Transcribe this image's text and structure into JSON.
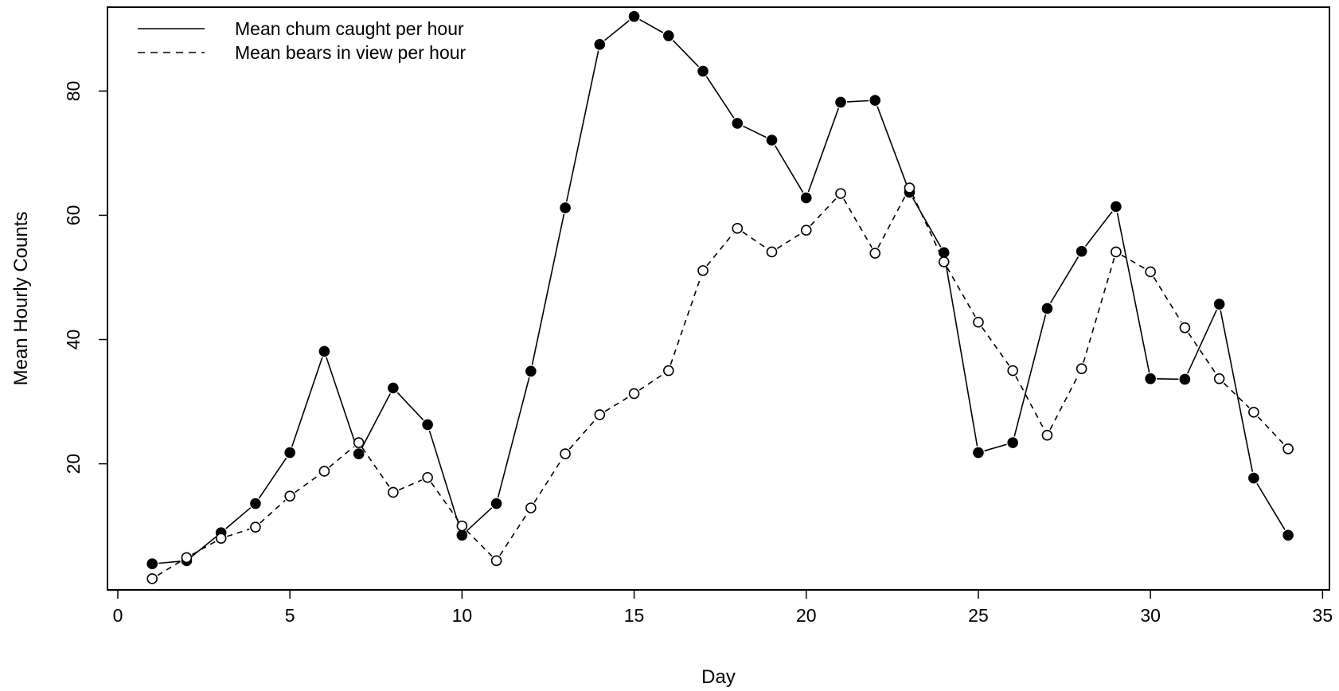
{
  "chart_data": {
    "type": "line",
    "title": "",
    "xlabel": "Day",
    "ylabel": "Mean Hourly Counts",
    "xlim": [
      -0.3,
      35.2
    ],
    "ylim": [
      -0.3,
      93.5
    ],
    "xticks": [
      0,
      5,
      10,
      15,
      20,
      25,
      30,
      35
    ],
    "yticks": [
      20,
      40,
      60,
      80
    ],
    "grid": false,
    "legend_position": "top-left",
    "x": [
      1,
      2,
      3,
      4,
      5,
      6,
      7,
      8,
      9,
      10,
      11,
      12,
      13,
      14,
      15,
      16,
      17,
      18,
      19,
      20,
      21,
      22,
      23,
      24,
      25,
      26,
      27,
      28,
      29,
      30,
      31,
      32,
      33,
      34
    ],
    "series": [
      {
        "name": "Mean chum caught per hour",
        "line_style": "solid",
        "marker": "filled-circle",
        "color": "#000000",
        "values": [
          3.9,
          4.4,
          8.9,
          13.6,
          21.8,
          38.1,
          21.6,
          32.2,
          26.3,
          8.5,
          13.6,
          34.9,
          61.2,
          87.5,
          92.0,
          88.9,
          83.2,
          74.8,
          72.1,
          62.8,
          78.2,
          78.5,
          63.7,
          54.0,
          21.8,
          23.4,
          45.0,
          54.2,
          61.4,
          33.7,
          33.6,
          45.7,
          17.7,
          8.5
        ]
      },
      {
        "name": "Mean bears in view per hour",
        "line_style": "dashed",
        "marker": "open-circle",
        "color": "#000000",
        "values": [
          1.5,
          4.9,
          8.0,
          9.8,
          14.8,
          18.8,
          23.4,
          15.4,
          17.8,
          10.0,
          4.4,
          12.9,
          21.6,
          27.9,
          31.3,
          35.0,
          51.1,
          57.9,
          54.1,
          57.6,
          63.5,
          53.9,
          64.4,
          52.5,
          42.8,
          35.0,
          24.6,
          35.3,
          54.1,
          50.9,
          41.9,
          33.7,
          28.3,
          22.4
        ]
      }
    ]
  }
}
